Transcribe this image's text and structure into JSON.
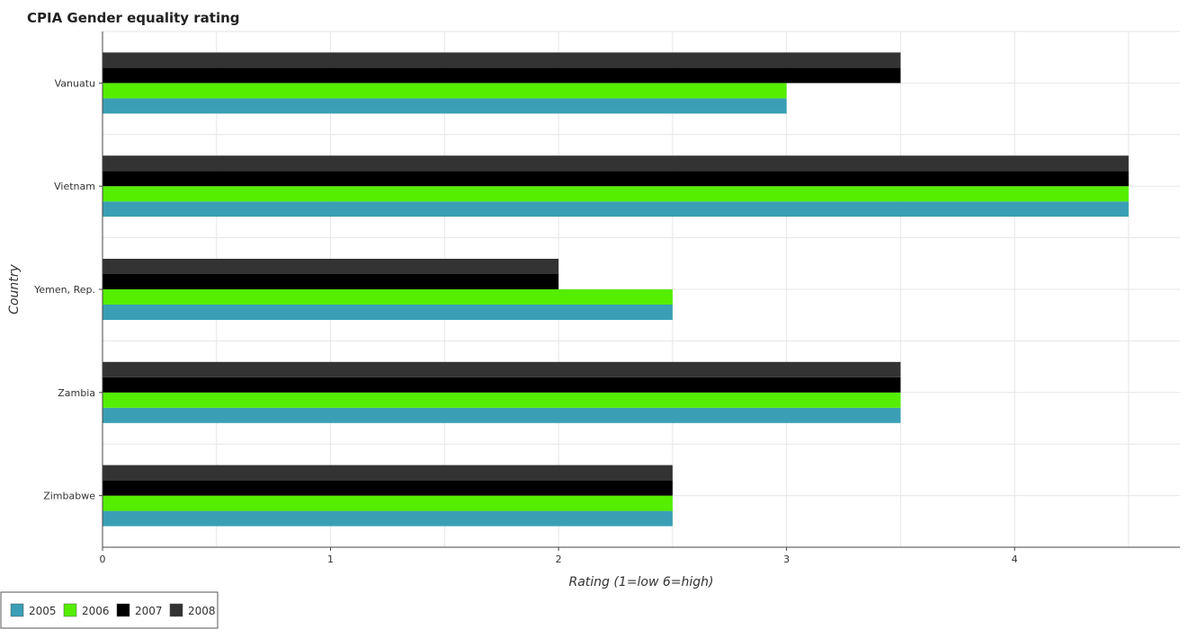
{
  "chart_data": {
    "type": "bar",
    "orientation": "horizontal",
    "title": "CPIA Gender equality rating",
    "xlabel": "Rating (1=low 6=high)",
    "ylabel": "Country",
    "categories": [
      "Vanuatu",
      "Vietnam",
      "Yemen, Rep.",
      "Zambia",
      "Zimbabwe"
    ],
    "series": [
      {
        "name": "2005",
        "color": "#3a9fb5",
        "values": [
          3.0,
          4.5,
          2.5,
          3.5,
          2.5
        ]
      },
      {
        "name": "2006",
        "color": "#55ee00",
        "values": [
          3.0,
          4.5,
          2.5,
          3.5,
          2.5
        ]
      },
      {
        "name": "2007",
        "color": "#000000",
        "values": [
          3.5,
          4.5,
          2.0,
          3.5,
          2.5
        ]
      },
      {
        "name": "2008",
        "color": "#333333",
        "values": [
          3.5,
          4.5,
          2.0,
          3.5,
          2.5
        ]
      }
    ],
    "xlim": [
      0,
      4.725
    ],
    "xticks": [
      0,
      1,
      2,
      3,
      4
    ],
    "xtick_labels": [
      "0",
      "1",
      "2",
      "3",
      "4"
    ],
    "grid": true,
    "legend_position": "bottom-left"
  }
}
